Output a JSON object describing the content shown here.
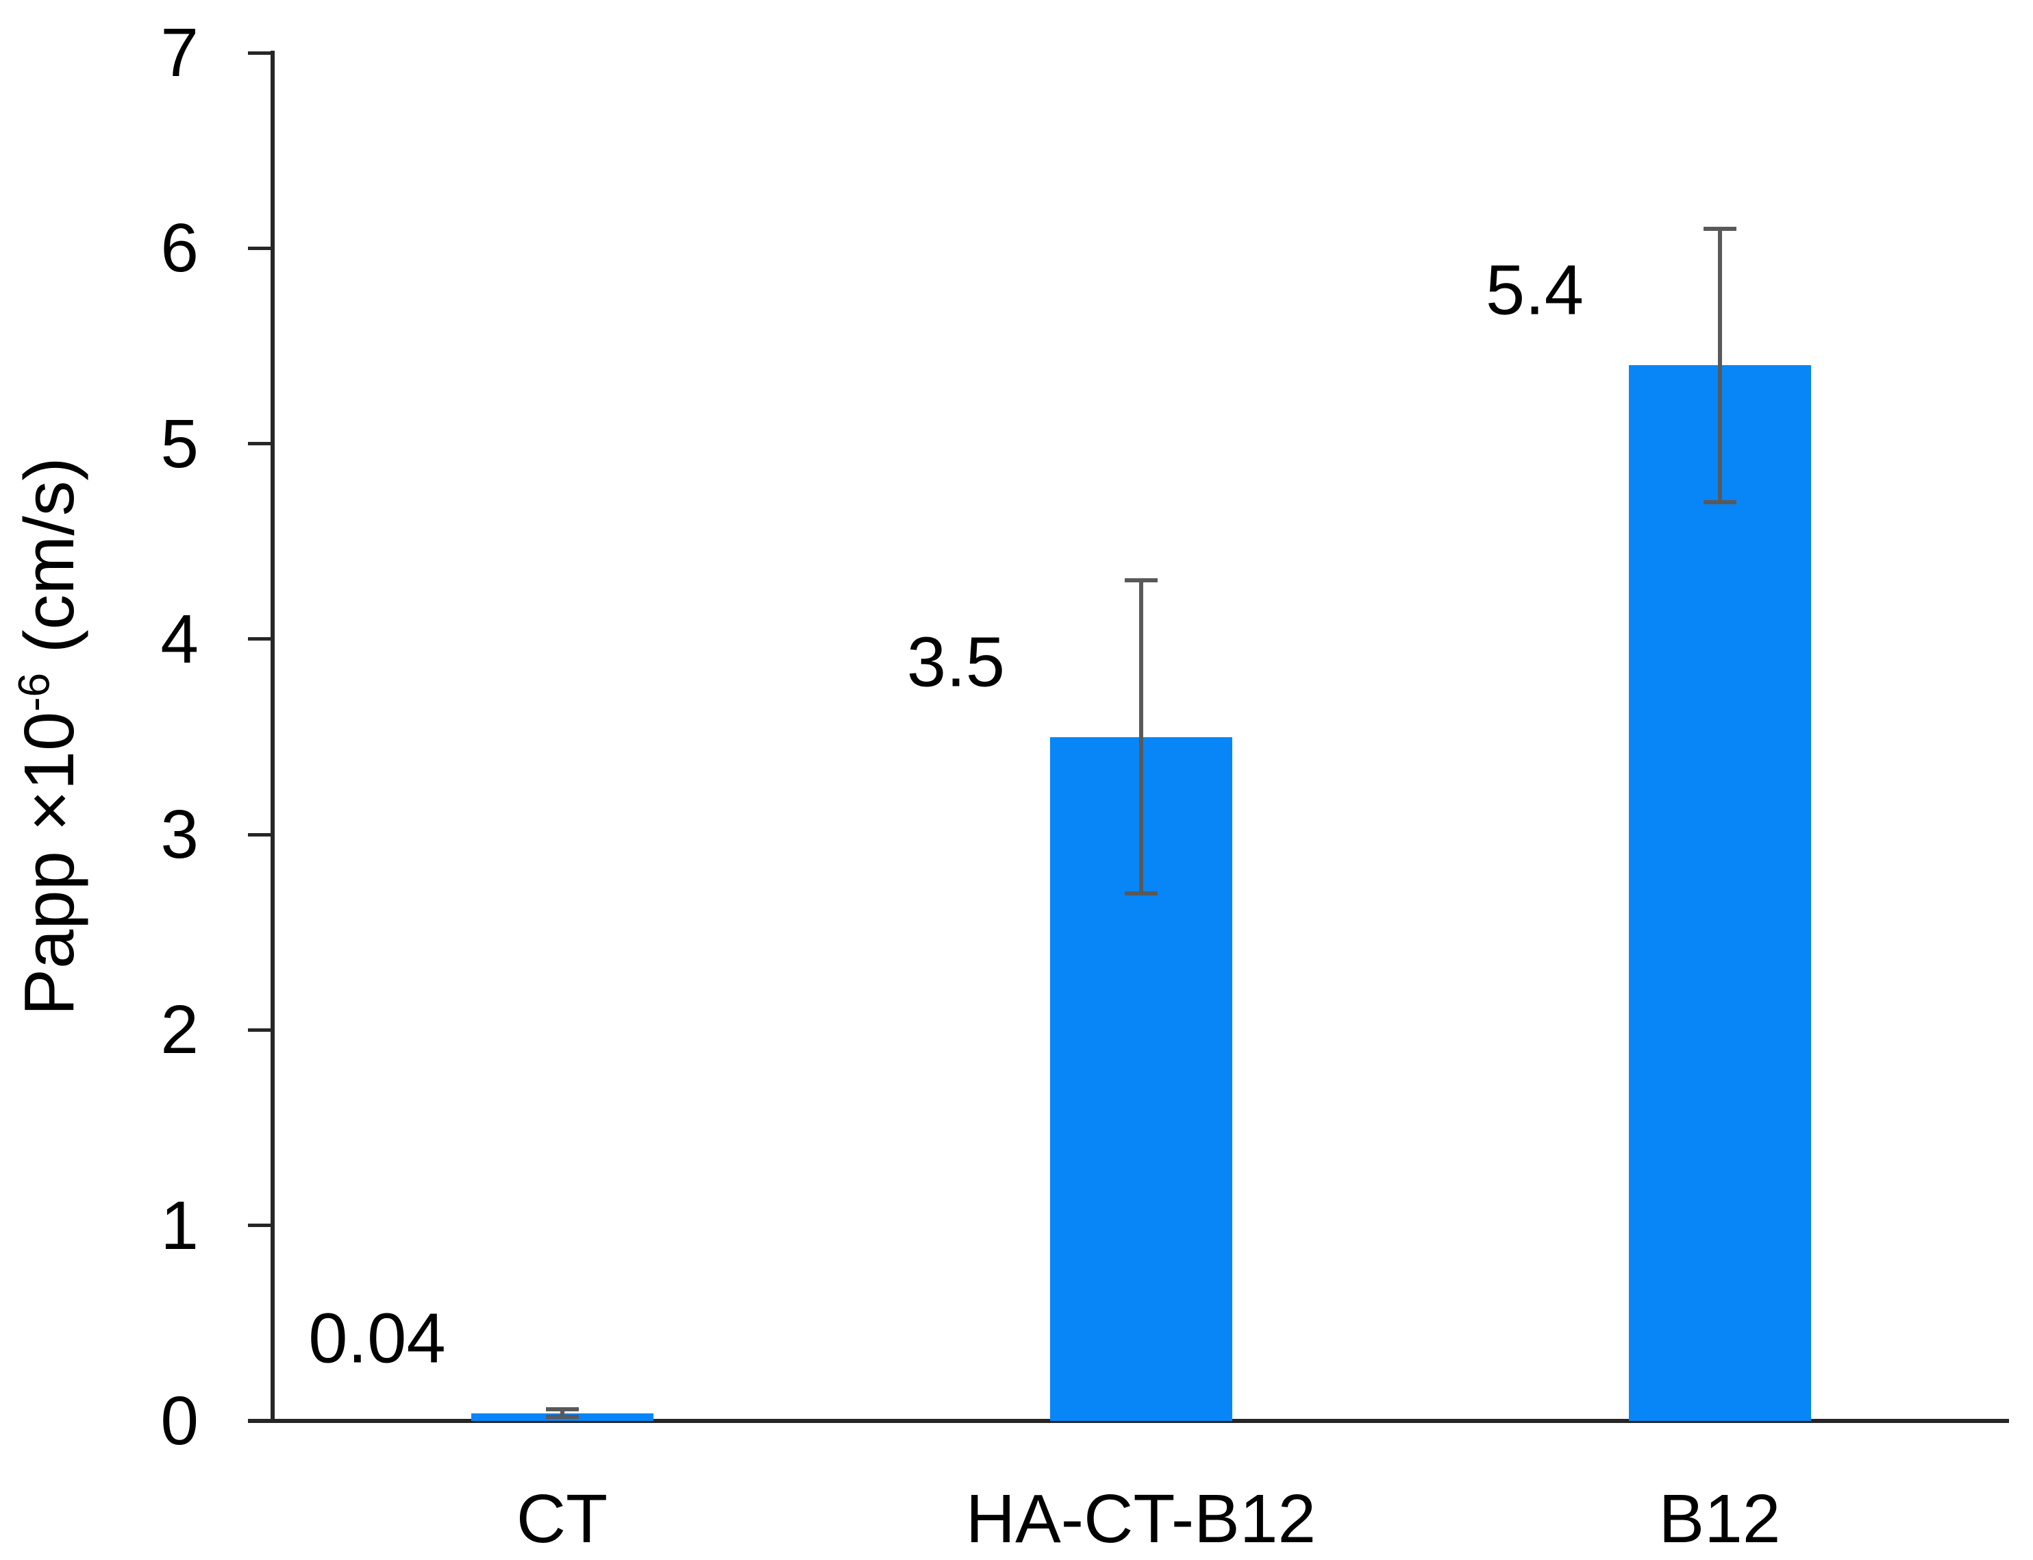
{
  "chart_data": {
    "type": "bar",
    "title": "",
    "categories": [
      "CT",
      "HA-CT-B12",
      "B12"
    ],
    "values": [
      0.04,
      3.5,
      5.4
    ],
    "errors": [
      0.02,
      0.8,
      0.7
    ],
    "data_labels": [
      "0.04",
      "3.5",
      "5.4"
    ],
    "ylabel": {
      "prefix": "Papp ×10",
      "exponent": "-6",
      "suffix": " (cm/s)",
      "full_text": "Papp ×10⁻⁶ (cm/s)"
    },
    "xlabel": "",
    "ylim": [
      0,
      7
    ],
    "yticks": [
      "0",
      "1",
      "2",
      "3",
      "4",
      "5",
      "6",
      "7"
    ],
    "grid": false,
    "legend": null,
    "colors": {
      "bar": "#0886f7",
      "axis": "#262626",
      "error_bar": "#595959",
      "text": "#000000",
      "background": "#ffffff"
    }
  }
}
